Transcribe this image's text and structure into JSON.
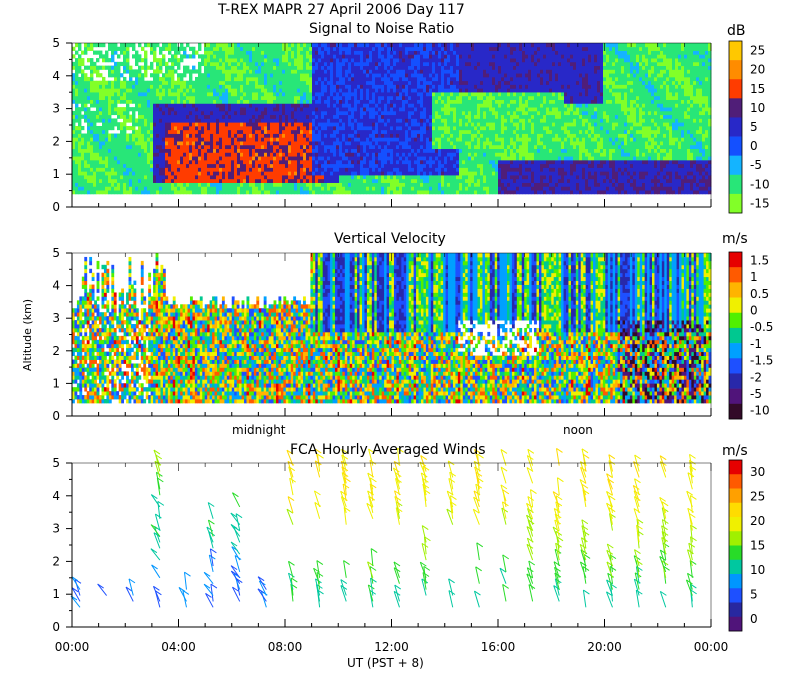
{
  "figure": {
    "title": "T-REX  MAPR 27 April 2006 Day 117",
    "xlabel": "UT  (PST + 8)",
    "ylabel": "Altitude (km)",
    "x_ticks": [
      "00:00",
      "04:00",
      "08:00",
      "12:00",
      "16:00",
      "20:00",
      "00:00"
    ],
    "day_markers": [
      "midnight",
      "noon"
    ]
  },
  "chart_data": [
    {
      "type": "heatmap",
      "title": "Signal to Noise Ratio",
      "units": "dB",
      "xlim_hours": [
        0,
        24
      ],
      "ylim": [
        0,
        5
      ],
      "y_ticks": [
        "0",
        "1",
        "2",
        "3",
        "4",
        "5"
      ],
      "colorbar": {
        "labels": [
          "25",
          "20",
          "15",
          "10",
          "5",
          "0",
          "-5",
          "-10",
          "-15"
        ],
        "colors": [
          "#ffc800",
          "#ff8c00",
          "#ff3c00",
          "#501e78",
          "#2828c8",
          "#1450ff",
          "#14b4ff",
          "#28e678",
          "#82ff28"
        ]
      },
      "features": {
        "strong_echo_layer": {
          "x_hours": [
            3.5,
            9.5
          ],
          "alt_km": [
            0.8,
            2.6
          ]
        },
        "upper_layer": {
          "x_hours": [
            14.0,
            20.0
          ],
          "alt_km": [
            3.5,
            5.0
          ]
        },
        "lower_layer": {
          "x_hours": [
            16.0,
            24.0
          ],
          "alt_km": [
            0.4,
            1.4
          ]
        }
      }
    },
    {
      "type": "heatmap",
      "title": "Vertical Velocity",
      "units": "m/s",
      "xlim_hours": [
        0,
        24
      ],
      "ylim": [
        0,
        5
      ],
      "y_ticks": [
        "0",
        "1",
        "2",
        "3",
        "4",
        "5"
      ],
      "colorbar": {
        "labels": [
          "1.5",
          "1",
          "0.5",
          "0",
          "-0.5",
          "-1",
          "-1.5",
          "-2",
          "-5",
          "-10"
        ],
        "colors": [
          "#e60000",
          "#ff5a00",
          "#ffb400",
          "#f0f000",
          "#50f000",
          "#00c890",
          "#00a0ff",
          "#1e50ff",
          "#2828aa",
          "#50147a",
          "#320a28"
        ]
      }
    },
    {
      "type": "wind_barbs",
      "title": "FCA Hourly Averaged Winds",
      "units": "m/s",
      "xlim_hours": [
        0,
        24
      ],
      "ylim": [
        0,
        5
      ],
      "y_ticks": [
        "0",
        "1",
        "2",
        "3",
        "4",
        "5"
      ],
      "colorbar": {
        "labels": [
          "30",
          "25",
          "20",
          "15",
          "10",
          "5",
          "0"
        ],
        "colors": [
          "#e60000",
          "#ff5a00",
          "#ffa000",
          "#ffdc00",
          "#f0f000",
          "#a0f000",
          "#28dc28",
          "#00c8a0",
          "#0096ff",
          "#1e50ff",
          "#2828a0",
          "#50147a"
        ]
      }
    }
  ]
}
